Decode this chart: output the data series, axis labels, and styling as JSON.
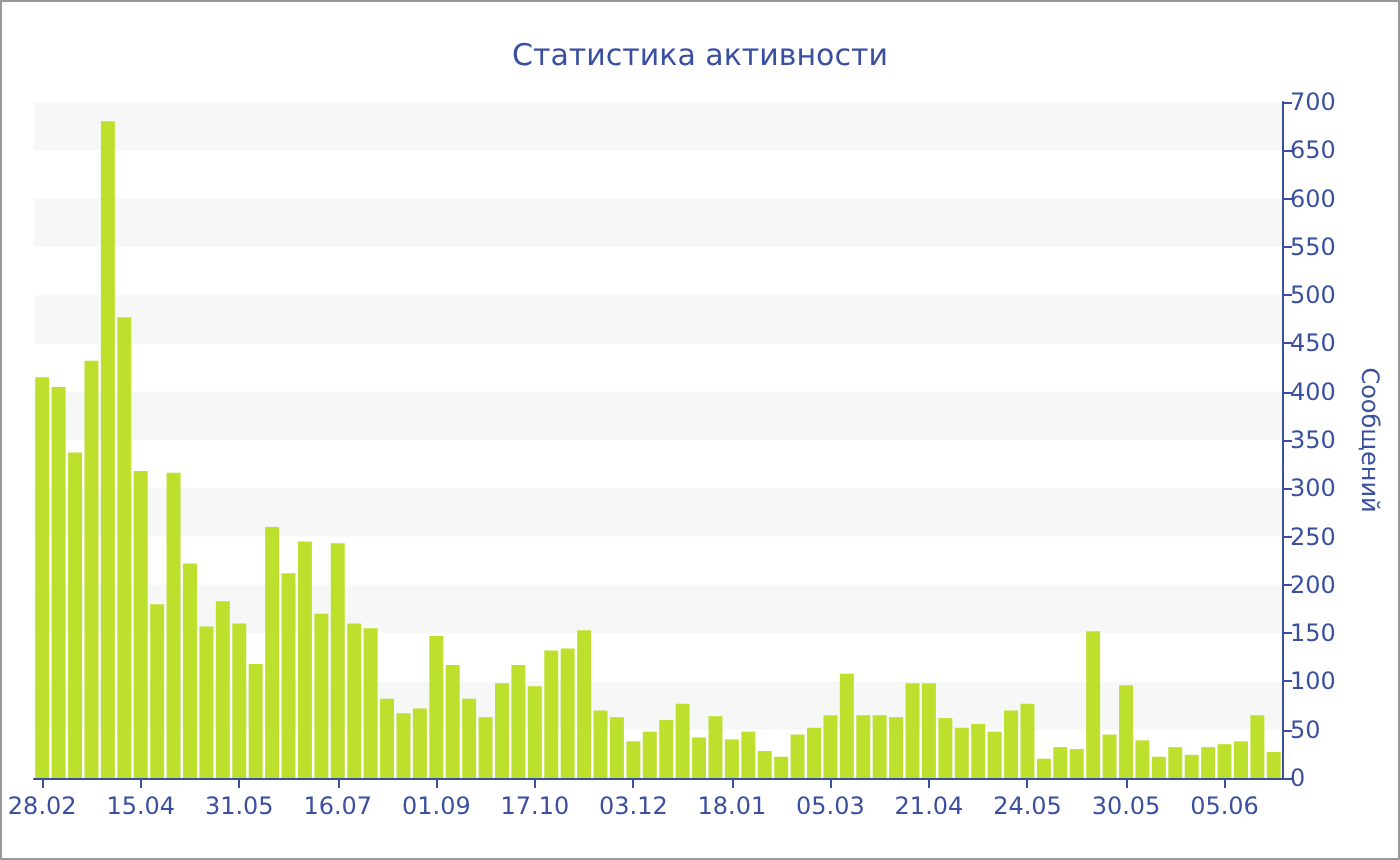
{
  "chart_data": {
    "type": "bar",
    "title": "Статистика активности",
    "ylabel": "Сообщений",
    "color": "#bde02c",
    "categories": [
      "28.02",
      null,
      null,
      null,
      null,
      null,
      "15.04",
      null,
      null,
      null,
      null,
      null,
      "31.05",
      null,
      null,
      null,
      null,
      null,
      "16.07",
      null,
      null,
      null,
      null,
      null,
      "01.09",
      null,
      null,
      null,
      null,
      null,
      "17.10",
      null,
      null,
      null,
      null,
      null,
      "03.12",
      null,
      null,
      null,
      null,
      null,
      "18.01",
      null,
      null,
      null,
      null,
      null,
      "05.03",
      null,
      null,
      null,
      null,
      null,
      "21.04",
      null,
      null,
      null,
      null,
      null,
      "24.05",
      null,
      null,
      null,
      null,
      null,
      "30.05",
      null,
      null,
      null,
      null,
      null,
      "05.06",
      null,
      null,
      null
    ],
    "values": [
      415,
      405,
      337,
      432,
      680,
      477,
      318,
      180,
      316,
      222,
      157,
      183,
      160,
      118,
      260,
      212,
      245,
      170,
      243,
      160,
      155,
      82,
      67,
      72,
      147,
      117,
      82,
      63,
      98,
      117,
      95,
      132,
      134,
      153,
      70,
      63,
      38,
      48,
      60,
      77,
      42,
      64,
      40,
      48,
      28,
      22,
      45,
      52,
      65,
      108,
      65,
      65,
      63,
      98,
      98,
      62,
      52,
      56,
      48,
      70,
      77,
      20,
      32,
      30,
      152,
      45,
      96,
      39,
      22,
      32,
      24,
      32,
      35,
      38,
      65,
      27
    ],
    "ylim": [
      0,
      700
    ],
    "yticks": [
      0,
      50,
      100,
      150,
      200,
      250,
      300,
      350,
      400,
      450,
      500,
      550,
      600,
      650,
      700
    ],
    "bands": [
      {
        "axis": "y",
        "from": 50,
        "to": 100,
        "color": "#f7f7f7"
      },
      {
        "axis": "y",
        "from": 150,
        "to": 200,
        "color": "#f7f7f7"
      },
      {
        "axis": "y",
        "from": 250,
        "to": 300,
        "color": "#f7f7f7"
      },
      {
        "axis": "y",
        "from": 350,
        "to": 400,
        "color": "#f7f7f7"
      },
      {
        "axis": "y",
        "from": 450,
        "to": 500,
        "color": "#f7f7f7"
      },
      {
        "axis": "y",
        "from": 550,
        "to": 600,
        "color": "#f7f7f7"
      },
      {
        "axis": "y",
        "from": 650,
        "to": 700,
        "color": "#f7f7f7"
      }
    ]
  }
}
